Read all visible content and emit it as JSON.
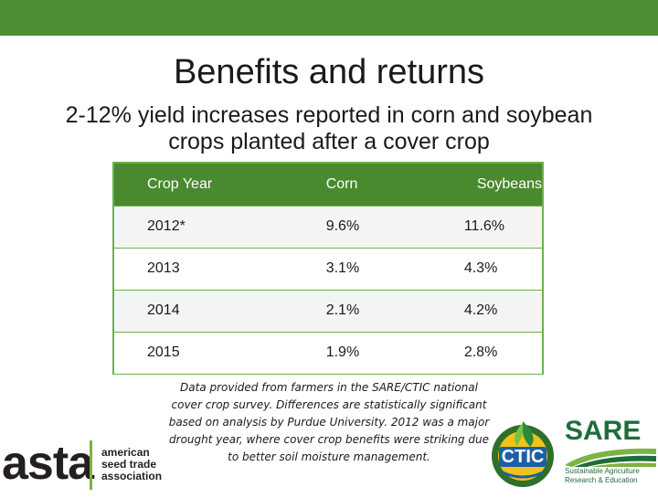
{
  "slide": {
    "title": "Benefits and returns",
    "subtitle": "2-12% yield increases reported in corn and soybean crops planted after a cover crop",
    "table": {
      "headers": [
        "Crop Year",
        "Corn",
        "Soybeans"
      ],
      "rows": [
        [
          "2012*",
          "9.6%",
          "11.6%"
        ],
        [
          "2013",
          "3.1%",
          "4.3%"
        ],
        [
          "2014",
          "2.1%",
          "4.2%"
        ],
        [
          "2015",
          "1.9%",
          "2.8%"
        ]
      ]
    },
    "note": "Data provided from farmers in the SARE/CTIC national cover crop survey. Differences are statistically significant based on analysis by Purdue University. 2012 was a major drought year, where cover crop benefits were striking due to better soil moisture management."
  },
  "logos": {
    "asta": {
      "word": "asta",
      "sub_lines": [
        "american",
        "seed trade",
        "association"
      ]
    },
    "ctic": {
      "word": "CTIC"
    },
    "sare": {
      "word": "SARE",
      "sub_lines": [
        "Sustainable Agriculture",
        "Research & Education"
      ]
    }
  },
  "colors": {
    "band": "#4d8f35",
    "table_header": "#4a8a2e",
    "table_border": "#6bb24a",
    "sare_green": "#1f6d3a"
  }
}
